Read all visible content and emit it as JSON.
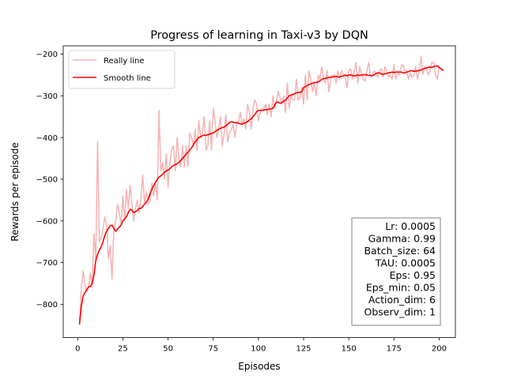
{
  "chart_data": {
    "type": "line",
    "title": "Progress of learning in Taxi-v3 by DQN",
    "xlabel": "Episodes",
    "ylabel": "Rewards per episode",
    "xlim": [
      -8,
      209
    ],
    "ylim": [
      -880,
      -180
    ],
    "xticks": [
      0,
      25,
      50,
      75,
      100,
      125,
      150,
      175,
      200
    ],
    "yticks": [
      -800,
      -700,
      -600,
      -500,
      -400,
      -300,
      -200
    ],
    "grid": false,
    "legend": {
      "position": "top-left",
      "entries": [
        {
          "name": "Really line",
          "color": "#f7b2b2"
        },
        {
          "name": "Smooth line",
          "color": "#ff0000"
        }
      ]
    },
    "annotation": {
      "position": "bottom-right",
      "lines": [
        "Lr: 0.0005",
        "Gamma: 0.99",
        "Batch_size: 64",
        "TAU: 0.0005",
        "Eps: 0.95",
        "Eps_min: 0.05",
        "Action_dim: 6",
        "Observ_dim: 1"
      ]
    },
    "x_start": 1,
    "x_step": 1,
    "series": [
      {
        "name": "Really line",
        "color": "#f7b2b2",
        "values": [
          -845,
          -760,
          -720,
          -755,
          -770,
          -760,
          -725,
          -760,
          -630,
          -690,
          -410,
          -650,
          -640,
          -620,
          -590,
          -610,
          -690,
          -660,
          -740,
          -620,
          -600,
          -560,
          -580,
          -610,
          -540,
          -600,
          -525,
          -570,
          -515,
          -560,
          -600,
          -570,
          -550,
          -580,
          -545,
          -490,
          -560,
          -530,
          -560,
          -550,
          -510,
          -540,
          -510,
          -550,
          -335,
          -480,
          -460,
          -500,
          -440,
          -520,
          -460,
          -430,
          -420,
          -480,
          -400,
          -450,
          -470,
          -420,
          -470,
          -420,
          -470,
          -390,
          -400,
          -420,
          -380,
          -430,
          -360,
          -400,
          -390,
          -350,
          -430,
          -420,
          -360,
          -430,
          -330,
          -360,
          -400,
          -380,
          -350,
          -420,
          -390,
          -345,
          -410,
          -390,
          -380,
          -370,
          -400,
          -365,
          -360,
          -340,
          -370,
          -355,
          -380,
          -320,
          -340,
          -380,
          -330,
          -310,
          -320,
          -360,
          -340,
          -330,
          -330,
          -320,
          -345,
          -320,
          -350,
          -300,
          -330,
          -310,
          -290,
          -305,
          -320,
          -300,
          -340,
          -270,
          -330,
          -300,
          -310,
          -310,
          -260,
          -310,
          -305,
          -280,
          -320,
          -250,
          -310,
          -240,
          -260,
          -290,
          -270,
          -300,
          -250,
          -260,
          -230,
          -260,
          -270,
          -240,
          -290,
          -260,
          -250,
          -250,
          -270,
          -240,
          -260,
          -240,
          -250,
          -255,
          -280,
          -240,
          -235,
          -260,
          -240,
          -220,
          -270,
          -230,
          -245,
          -260,
          -265,
          -240,
          -220,
          -255,
          -250,
          -240,
          -245,
          -255,
          -240,
          -235,
          -255,
          -230,
          -240,
          -255,
          -250,
          -260,
          -225,
          -260,
          -245,
          -250,
          -230,
          -225,
          -240,
          -240,
          -260,
          -245,
          -255,
          -250,
          -230,
          -260,
          -240,
          -205,
          -250,
          -230,
          -235,
          -250,
          -240,
          -220,
          -220,
          -250,
          -260,
          -230
        ]
      },
      {
        "name": "Smooth line",
        "color": "#ff0000",
        "values": [
          -847,
          -805,
          -780,
          -772,
          -765,
          -758,
          -757,
          -750,
          -730,
          -695,
          -680,
          -670,
          -662,
          -650,
          -635,
          -625,
          -618,
          -612,
          -610,
          -618,
          -625,
          -620,
          -615,
          -610,
          -600,
          -595,
          -590,
          -580,
          -572,
          -575,
          -580,
          -578,
          -575,
          -570,
          -570,
          -565,
          -560,
          -555,
          -548,
          -535,
          -525,
          -515,
          -508,
          -500,
          -495,
          -492,
          -488,
          -483,
          -480,
          -478,
          -475,
          -470,
          -467,
          -465,
          -463,
          -460,
          -455,
          -450,
          -445,
          -440,
          -435,
          -430,
          -425,
          -418,
          -410,
          -405,
          -400,
          -398,
          -396,
          -394,
          -395,
          -393,
          -392,
          -390,
          -389,
          -386,
          -383,
          -380,
          -378,
          -376,
          -375,
          -372,
          -368,
          -364,
          -362,
          -363,
          -365,
          -364,
          -366,
          -367,
          -368,
          -366,
          -364,
          -362,
          -358,
          -355,
          -350,
          -345,
          -338,
          -335,
          -335,
          -335,
          -334,
          -333,
          -333,
          -332,
          -331,
          -330,
          -322,
          -315,
          -315,
          -318,
          -316,
          -313,
          -310,
          -305,
          -300,
          -298,
          -297,
          -295,
          -293,
          -292,
          -292,
          -290,
          -280,
          -278,
          -275,
          -273,
          -271,
          -270,
          -268,
          -268,
          -267,
          -264,
          -261,
          -259,
          -258,
          -257,
          -256,
          -255,
          -255,
          -254,
          -253,
          -255,
          -255,
          -253,
          -252,
          -250,
          -252,
          -250,
          -250,
          -251,
          -252,
          -252,
          -250,
          -251,
          -250,
          -250,
          -249,
          -250,
          -251,
          -251,
          -252,
          -250,
          -246,
          -245,
          -245,
          -248,
          -249,
          -247,
          -246,
          -245,
          -244,
          -243,
          -244,
          -243,
          -243,
          -243,
          -243,
          -245,
          -245,
          -243,
          -242,
          -240,
          -240,
          -241,
          -241,
          -240,
          -239,
          -238,
          -236,
          -234,
          -233,
          -232,
          -231,
          -232,
          -230,
          -229,
          -228,
          -232,
          -235,
          -238
        ]
      }
    ]
  }
}
